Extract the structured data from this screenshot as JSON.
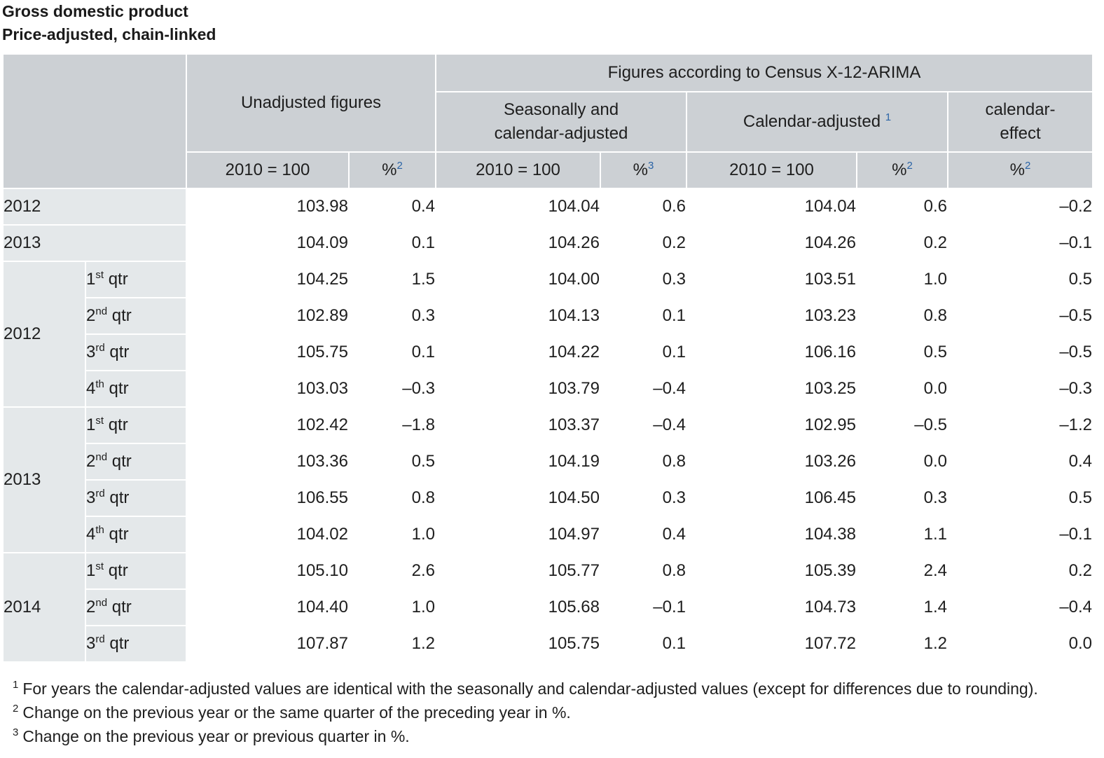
{
  "title": "Gross domestic product",
  "subtitle": "Price-adjusted, chain-linked",
  "header": {
    "unadjusted": "Unadjusted figures",
    "census": "Figures according to Census X-12-ARIMA",
    "seasonal_line1": "Seasonally and",
    "seasonal_line2": "calendar-adjusted",
    "calendar_adjusted": "Calendar-adjusted",
    "calendar_adjusted_note": "1",
    "calendar_effect_line1": "calendar-",
    "calendar_effect_line2": "effect",
    "index_label": "2010 = 100",
    "pct_label": "%",
    "pct_note_unadj": "2",
    "pct_note_seasonal": "3",
    "pct_note_calendar": "2",
    "pct_note_effect": "2"
  },
  "qtr_word": "qtr",
  "rows": [
    {
      "year": "2012",
      "qtr_num": "",
      "qtr_sup": "",
      "values": [
        "103.98",
        "0.4",
        "104.04",
        "0.6",
        "104.04",
        "0.6",
        "–0.2"
      ]
    },
    {
      "year": "2013",
      "qtr_num": "",
      "qtr_sup": "",
      "values": [
        "104.09",
        "0.1",
        "104.26",
        "0.2",
        "104.26",
        "0.2",
        "–0.1"
      ]
    },
    {
      "year": "2012",
      "qtr_num": "1",
      "qtr_sup": "st",
      "values": [
        "104.25",
        "1.5",
        "104.00",
        "0.3",
        "103.51",
        "1.0",
        "0.5"
      ]
    },
    {
      "year": "",
      "qtr_num": "2",
      "qtr_sup": "nd",
      "values": [
        "102.89",
        "0.3",
        "104.13",
        "0.1",
        "103.23",
        "0.8",
        "–0.5"
      ]
    },
    {
      "year": "",
      "qtr_num": "3",
      "qtr_sup": "rd",
      "values": [
        "105.75",
        "0.1",
        "104.22",
        "0.1",
        "106.16",
        "0.5",
        "–0.5"
      ]
    },
    {
      "year": "",
      "qtr_num": "4",
      "qtr_sup": "th",
      "values": [
        "103.03",
        "–0.3",
        "103.79",
        "–0.4",
        "103.25",
        "0.0",
        "–0.3"
      ]
    },
    {
      "year": "2013",
      "qtr_num": "1",
      "qtr_sup": "st",
      "values": [
        "102.42",
        "–1.8",
        "103.37",
        "–0.4",
        "102.95",
        "–0.5",
        "–1.2"
      ]
    },
    {
      "year": "",
      "qtr_num": "2",
      "qtr_sup": "nd",
      "values": [
        "103.36",
        "0.5",
        "104.19",
        "0.8",
        "103.26",
        "0.0",
        "0.4"
      ]
    },
    {
      "year": "",
      "qtr_num": "3",
      "qtr_sup": "rd",
      "values": [
        "106.55",
        "0.8",
        "104.50",
        "0.3",
        "106.45",
        "0.3",
        "0.5"
      ]
    },
    {
      "year": "",
      "qtr_num": "4",
      "qtr_sup": "th",
      "values": [
        "104.02",
        "1.0",
        "104.97",
        "0.4",
        "104.38",
        "1.1",
        "–0.1"
      ]
    },
    {
      "year": "2014",
      "qtr_num": "1",
      "qtr_sup": "st",
      "values": [
        "105.10",
        "2.6",
        "105.77",
        "0.8",
        "105.39",
        "2.4",
        "0.2"
      ]
    },
    {
      "year": "",
      "qtr_num": "2",
      "qtr_sup": "nd",
      "values": [
        "104.40",
        "1.0",
        "105.68",
        "–0.1",
        "104.73",
        "1.4",
        "–0.4"
      ]
    },
    {
      "year": "",
      "qtr_num": "3",
      "qtr_sup": "rd",
      "values": [
        "107.87",
        "1.2",
        "105.75",
        "0.1",
        "107.72",
        "1.2",
        "0.0"
      ]
    }
  ],
  "footnotes": [
    {
      "mark": "1",
      "text": "For years the calendar-adjusted values are identical with the seasonally and calendar-adjusted values (except for differences due to rounding)."
    },
    {
      "mark": "2",
      "text": "Change on the previous year or the same quarter of the preceding year in %."
    },
    {
      "mark": "3",
      "text": "Change on the previous year or previous quarter in %."
    }
  ],
  "colors": {
    "header_bg": "#ccd0d4",
    "label_bg": "#e4e8ea",
    "note_link": "#2a63a6"
  }
}
